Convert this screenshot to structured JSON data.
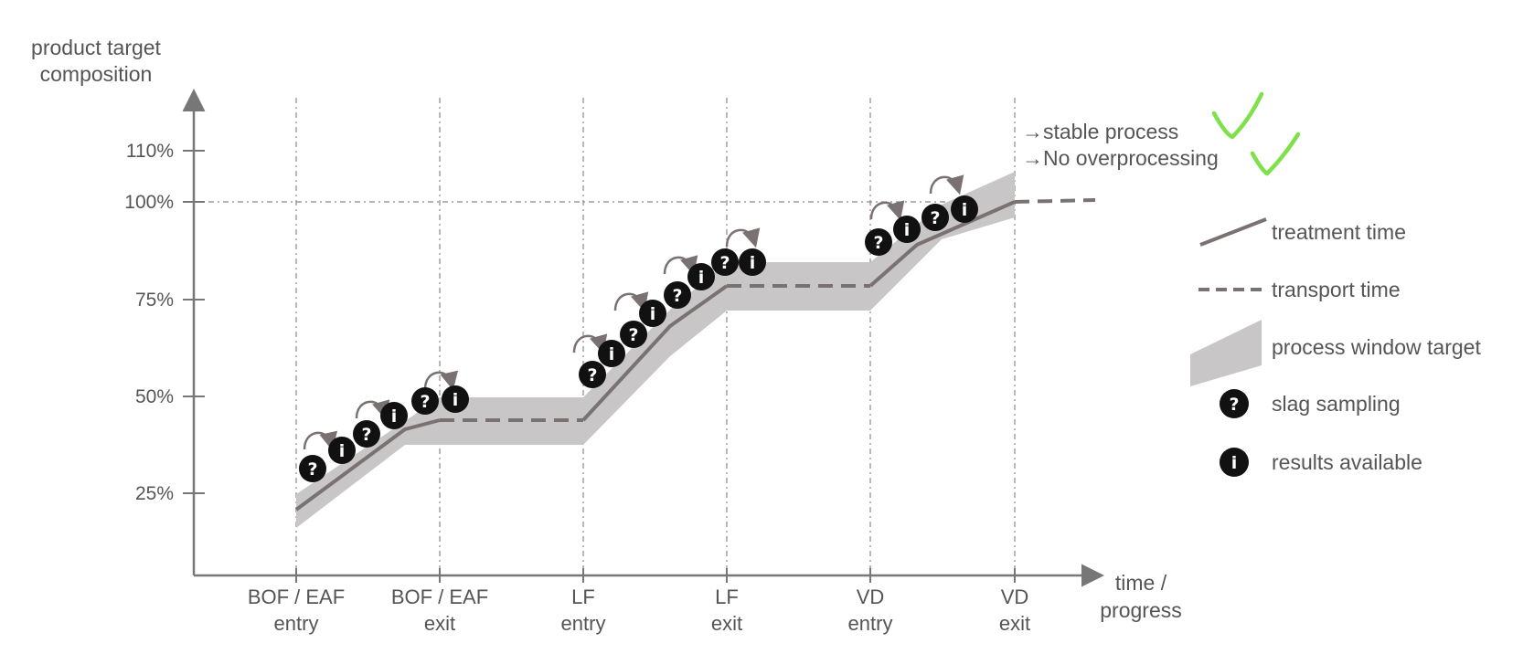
{
  "y_axis": {
    "title_line1": "product target",
    "title_line2": "composition",
    "ticks": [
      {
        "label": "110%",
        "value": 110
      },
      {
        "label": "100%",
        "value": 100
      },
      {
        "label": "75%",
        "value": 75
      },
      {
        "label": "50%",
        "value": 50
      },
      {
        "label": "25%",
        "value": 25
      }
    ]
  },
  "x_axis": {
    "title_line1": "time /",
    "title_line2": "progress",
    "stages": [
      {
        "line1": "BOF / EAF",
        "line2": "entry"
      },
      {
        "line1": "BOF / EAF",
        "line2": "exit"
      },
      {
        "line1": "LF",
        "line2": "entry"
      },
      {
        "line1": "LF",
        "line2": "exit"
      },
      {
        "line1": "VD",
        "line2": "entry"
      },
      {
        "line1": "VD",
        "line2": "exit"
      }
    ]
  },
  "notes": [
    {
      "text": "→stable process",
      "checked": true
    },
    {
      "text": "→No overprocessing",
      "checked": true
    }
  ],
  "legend": [
    {
      "label": "treatment time",
      "kind": "solid-line"
    },
    {
      "label": "transport time",
      "kind": "dashed-line"
    },
    {
      "label": "process window target",
      "kind": "band"
    },
    {
      "label": "slag sampling",
      "kind": "question-marker",
      "glyph": "?"
    },
    {
      "label": "results available",
      "kind": "info-marker",
      "glyph": "i"
    }
  ],
  "colors": {
    "line": "#7a7173",
    "band": "#c8c6c6",
    "marker": "#111111",
    "check": "#7ee04a",
    "axis": "#777777"
  }
}
